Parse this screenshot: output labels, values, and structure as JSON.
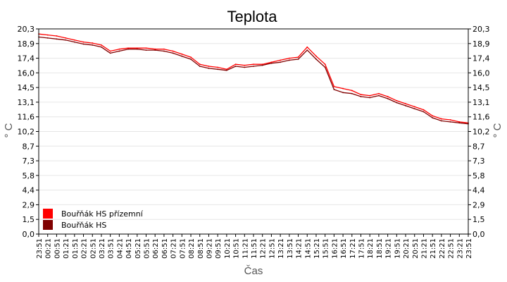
{
  "chart_data": {
    "type": "line",
    "title": "Teplota",
    "xlabel": "Čas",
    "ylabel": "° C",
    "ylim": [
      0,
      20.3
    ],
    "yticks": [
      "0,0",
      "1,5",
      "2,9",
      "4,4",
      "5,8",
      "7,3",
      "8,7",
      "10,2",
      "11,6",
      "13,1",
      "14,5",
      "16,0",
      "17,4",
      "18,9",
      "20,3"
    ],
    "x": [
      "23:51",
      "00:21",
      "00:51",
      "01:21",
      "01:51",
      "02:21",
      "02:51",
      "03:21",
      "03:51",
      "04:21",
      "04:51",
      "05:21",
      "05:51",
      "06:21",
      "06:51",
      "07:21",
      "07:51",
      "08:21",
      "08:51",
      "09:21",
      "09:51",
      "10:21",
      "10:51",
      "11:21",
      "11:51",
      "12:21",
      "12:51",
      "13:21",
      "13:51",
      "14:21",
      "14:51",
      "15:21",
      "15:51",
      "16:21",
      "16:51",
      "17:21",
      "17:51",
      "18:21",
      "18:51",
      "19:21",
      "19:51",
      "20:21",
      "20:51",
      "21:21",
      "21:51",
      "22:21",
      "22:51",
      "23:21",
      "23:51"
    ],
    "grid": true,
    "legend_position": "bottom-left",
    "series": [
      {
        "name": "Bouřňák HS přízemní",
        "color": "#ff0000",
        "values": [
          19.8,
          19.7,
          19.6,
          19.4,
          19.2,
          19.0,
          18.9,
          18.7,
          18.1,
          18.3,
          18.4,
          18.4,
          18.4,
          18.3,
          18.3,
          18.1,
          17.8,
          17.5,
          16.8,
          16.6,
          16.5,
          16.3,
          16.8,
          16.7,
          16.8,
          16.8,
          17.0,
          17.2,
          17.4,
          17.5,
          18.5,
          17.6,
          16.8,
          14.6,
          14.4,
          14.2,
          13.8,
          13.7,
          13.9,
          13.6,
          13.2,
          12.9,
          12.6,
          12.3,
          11.7,
          11.4,
          11.3,
          11.1,
          11.0
        ]
      },
      {
        "name": "Bouřňák HS",
        "color": "#800000",
        "values": [
          19.5,
          19.4,
          19.3,
          19.2,
          19.0,
          18.8,
          18.7,
          18.5,
          17.9,
          18.1,
          18.3,
          18.3,
          18.2,
          18.2,
          18.1,
          17.9,
          17.6,
          17.3,
          16.6,
          16.4,
          16.3,
          16.2,
          16.6,
          16.5,
          16.6,
          16.7,
          16.9,
          17.0,
          17.2,
          17.3,
          18.2,
          17.3,
          16.5,
          14.3,
          14.0,
          13.9,
          13.6,
          13.5,
          13.7,
          13.4,
          13.0,
          12.7,
          12.4,
          12.1,
          11.5,
          11.2,
          11.1,
          11.0,
          10.9
        ]
      }
    ]
  }
}
